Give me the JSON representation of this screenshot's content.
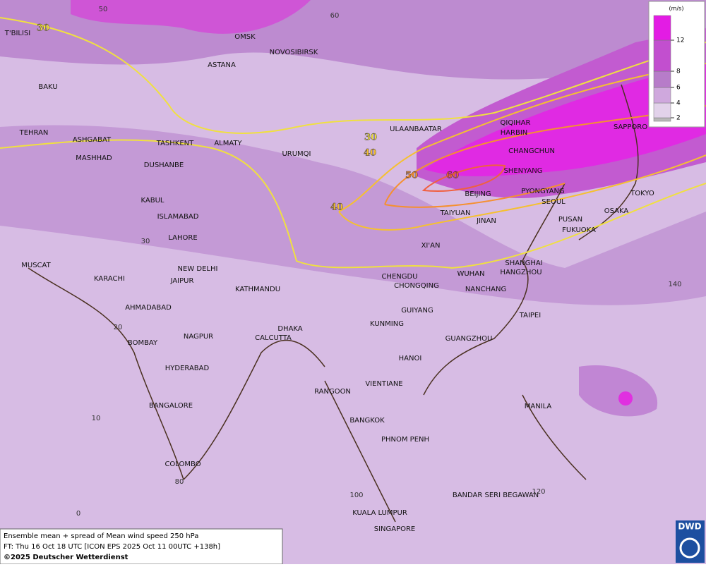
{
  "footer": {
    "title": "Ensemble mean + spread of Mean wind speed 250 hPa",
    "forecast": "FT: Thu 16 Oct 18 UTC [ICON EPS 2025 Oct 11 00UTC +138h]",
    "copyright": "©2025 Deutscher Wetterdienst"
  },
  "logo": "DWD",
  "legend": {
    "unit": "(m/s)",
    "ticks": [
      2,
      4,
      6,
      8,
      12
    ],
    "colors": [
      "#b8b8b8",
      "#e2d2ea",
      "#cfa8dd",
      "#b77cc9",
      "#c24fcf",
      "#e31ce4"
    ]
  },
  "contour_labels": [
    {
      "value": 30,
      "color": "#f0e040"
    },
    {
      "value": 30,
      "color": "#f0e040"
    },
    {
      "value": 40,
      "color": "#f5c030"
    },
    {
      "value": 40,
      "color": "#f5c030"
    },
    {
      "value": 50,
      "color": "#f59030"
    },
    {
      "value": 60,
      "color": "#f06040"
    }
  ],
  "grid_labels": [
    50,
    60,
    30,
    20,
    10,
    0,
    80,
    100,
    120,
    140
  ],
  "cities": [
    "OMSK",
    "NOVOSIBIRSK",
    "ASTANA",
    "T'BILISI",
    "BAKU",
    "TEHRAN",
    "ASHGABAT",
    "MASHHAD",
    "TASHKENT",
    "ALMATY",
    "DUSHANBE",
    "URUMQI",
    "ULAANBAATAR",
    "QIQIHAR",
    "HARBIN",
    "SAPPORO",
    "CHANGCHUN",
    "SHENYANG",
    "BEIJING",
    "PYONGYANG",
    "SEOUL",
    "TOKYO",
    "OSAKA",
    "PUSAN",
    "FUKUOKA",
    "TAIYUAN",
    "JINAN",
    "XI'AN",
    "KABUL",
    "ISLAMABAD",
    "LAHORE",
    "MUSCAT",
    "KARACHI",
    "NEW DELHI",
    "JAIPUR",
    "KATHMANDU",
    "CHENGDU",
    "CHONGQING",
    "WUHAN",
    "SHANGHAI",
    "HANGZHOU",
    "NANCHANG",
    "AHMADABAD",
    "TAIPEI",
    "GUIYANG",
    "KUNMING",
    "DHAKA",
    "CALCUTTA",
    "NAGPUR",
    "BOMBAY",
    "GUANGZHOU",
    "HANOI",
    "HYDERABAD",
    "RANGOON",
    "VIENTIANE",
    "MANILA",
    "BANGALORE",
    "BANGKOK",
    "PHNOM PENH",
    "COLOMBO",
    "BANDAR SERI BEGAWAN",
    "KUALA LUMPUR",
    "SINGAPORE"
  ]
}
